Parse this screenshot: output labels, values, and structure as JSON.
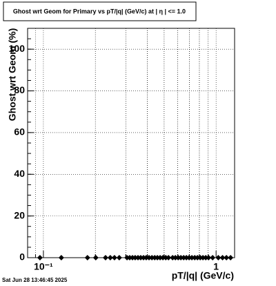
{
  "chart_data": {
    "type": "scatter",
    "title": "Ghost wrt Geom for Primary vs pT/|q| (GeV/c) at |  η  | <= 1.0",
    "x_label": "pT/|q| (GeV/c)",
    "y_label": "Ghost wrt Geom (%)",
    "timestamp": "Sat Jun 28 13:46:45 2025",
    "x": [
      0.0955,
      0.127,
      0.18,
      0.201,
      0.229,
      0.244,
      0.258,
      0.275,
      0.305,
      0.316,
      0.328,
      0.34,
      0.353,
      0.366,
      0.38,
      0.394,
      0.409,
      0.425,
      0.441,
      0.457,
      0.474,
      0.492,
      0.511,
      0.53,
      0.56,
      0.581,
      0.603,
      0.625,
      0.649,
      0.673,
      0.698,
      0.724,
      0.752,
      0.78,
      0.809,
      0.839,
      0.871,
      0.904,
      0.955,
      1.03,
      1.09,
      1.148,
      1.213
    ],
    "series": [
      {
        "color": "#000000",
        "values": [
          0,
          0,
          0,
          0,
          0,
          0,
          0,
          0,
          0,
          0,
          0,
          0,
          0,
          0,
          0,
          0,
          0,
          0,
          0,
          0,
          0,
          0,
          0,
          0,
          0,
          0,
          0,
          0,
          0,
          0,
          0,
          0,
          0,
          0,
          0,
          0,
          0,
          0,
          0,
          0,
          0,
          0,
          0
        ]
      }
    ],
    "xlim": [
      0.081,
      1.28
    ],
    "xlog": true,
    "xticks": [
      {
        "value": 0.1,
        "label": "10⁻¹"
      },
      1
    ],
    "ylim": [
      0,
      110
    ],
    "yticks": [
      0,
      20,
      40,
      60,
      80,
      100
    ],
    "grid": true
  }
}
